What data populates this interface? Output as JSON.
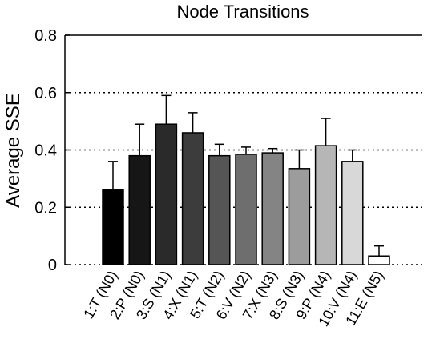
{
  "chart_data": {
    "type": "bar",
    "title": "Node Transitions",
    "xlabel": "",
    "ylabel": "Average SSE",
    "ylim": [
      0,
      0.8
    ],
    "yticks": [
      "0",
      "0.2",
      "0.4",
      "0.6",
      "0.8"
    ],
    "ytick_values": [
      0,
      0.2,
      0.4,
      0.6,
      0.8
    ],
    "grid": "horizontal-dotted",
    "categories": [
      "1:T (N0)",
      "2:P (N0)",
      "3:S (N1)",
      "4:X (N1)",
      "5:T (N2)",
      "6:V (N2)",
      "7:X (N3)",
      "8:S (N3)",
      "9:P (N4)",
      "10:V (N4)",
      "11:E (N5)"
    ],
    "values": [
      0.26,
      0.38,
      0.49,
      0.46,
      0.38,
      0.385,
      0.39,
      0.335,
      0.415,
      0.36,
      0.03
    ],
    "error_upper": [
      0.36,
      0.49,
      0.59,
      0.53,
      0.42,
      0.41,
      0.405,
      0.4,
      0.51,
      0.4,
      0.065
    ],
    "bar_colors": [
      "#000000",
      "#161616",
      "#2a2a2a",
      "#3c3c3c",
      "#555555",
      "#6e6e6e",
      "#848484",
      "#9c9c9c",
      "#b6b6b6",
      "#d8d8d8",
      "#ffffff"
    ]
  }
}
